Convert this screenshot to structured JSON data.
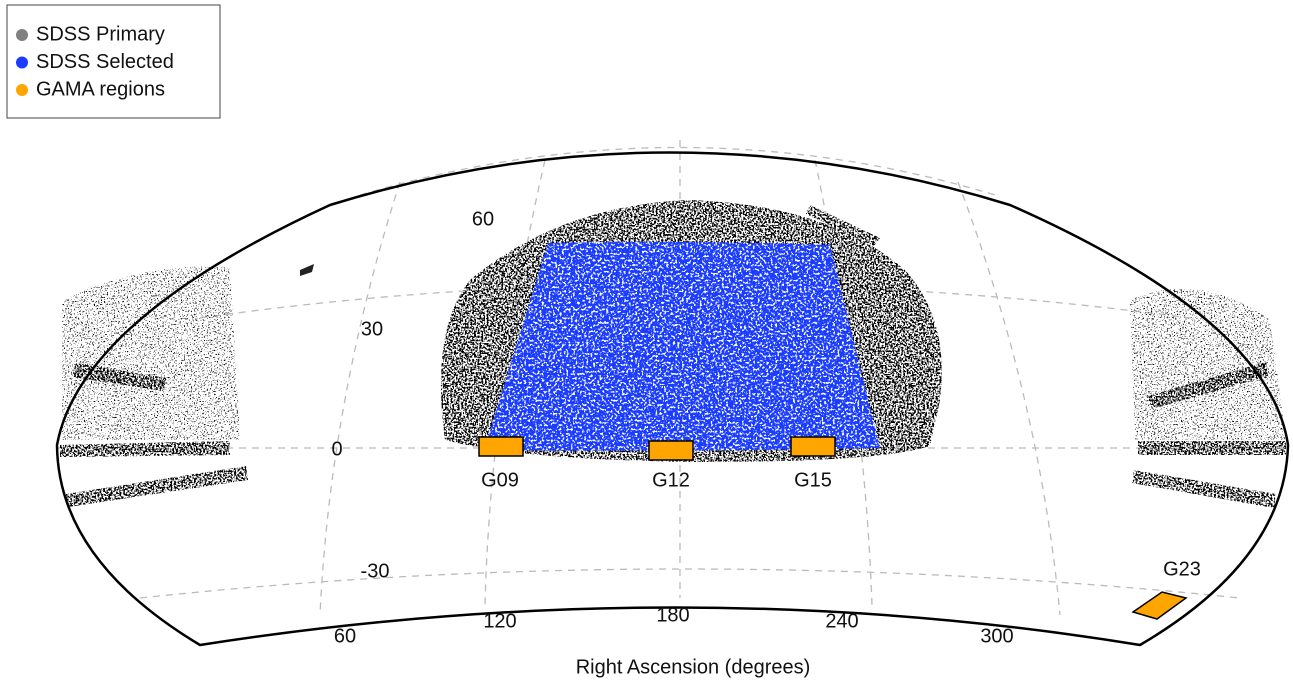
{
  "chart_data": {
    "type": "sky-map",
    "xlabel": "Right Ascension (degrees)",
    "ra_ticks": [
      60,
      120,
      180,
      240,
      300
    ],
    "dec_ticks": [
      60,
      30,
      0,
      -30
    ],
    "series": [
      {
        "name": "SDSS Primary",
        "color": "#808080"
      },
      {
        "name": "SDSS Selected",
        "color": "#1a3cff"
      },
      {
        "name": "GAMA regions",
        "color": "#ffa500"
      }
    ],
    "regions": [
      "G09",
      "G12",
      "G15",
      "G23"
    ]
  }
}
